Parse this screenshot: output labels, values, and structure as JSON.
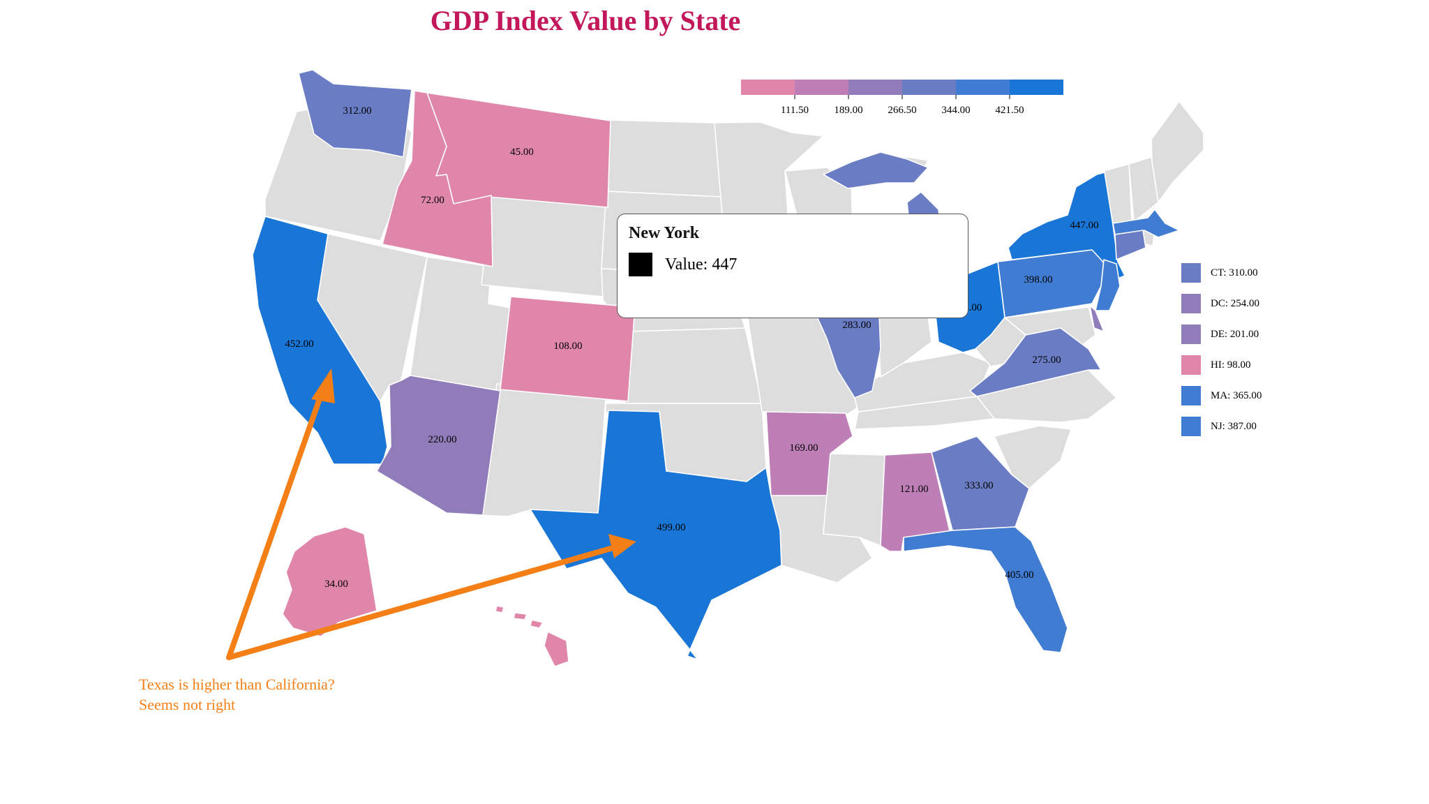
{
  "title": "GDP Index Value by State",
  "colors": {
    "no_data": "#dddddd",
    "scale": [
      "#e186ab",
      "#bd7fb6",
      "#917cba",
      "#6a7dc4",
      "#3f7cd2",
      "#1a76d6"
    ],
    "title": "#c2185b",
    "annotation": "#f57f17"
  },
  "color_legend": {
    "thresholds": [
      "111.50",
      "189.00",
      "266.50",
      "344.00",
      "421.50"
    ]
  },
  "side_legend": [
    {
      "label": "CT: 310.00",
      "value": 310
    },
    {
      "label": "DC: 254.00",
      "value": 254
    },
    {
      "label": "DE: 201.00",
      "value": 201
    },
    {
      "label": "HI: 98.00",
      "value": 98
    },
    {
      "label": "MA: 365.00",
      "value": 365
    },
    {
      "label": "NJ: 387.00",
      "value": 387
    }
  ],
  "tooltip": {
    "title": "New York",
    "value_text": "Value: 447"
  },
  "annotation": {
    "line1": "Texas is higher than California?",
    "line2": "Seems not right"
  },
  "chart_data": {
    "type": "choropleth",
    "title": "GDP Index Value by State",
    "legend_thresholds": [
      111.5,
      189,
      266.5,
      344,
      421.5
    ],
    "states": [
      {
        "id": "WA",
        "value": 312,
        "label": "312.00"
      },
      {
        "id": "MT",
        "value": 45,
        "label": "45.00"
      },
      {
        "id": "ID",
        "value": 72,
        "label": "72.00"
      },
      {
        "id": "CA",
        "value": 452,
        "label": "452.00"
      },
      {
        "id": "CO",
        "value": 108,
        "label": "108.00"
      },
      {
        "id": "AZ",
        "value": 220,
        "label": "220.00"
      },
      {
        "id": "TX",
        "value": 499,
        "label": "499.00"
      },
      {
        "id": "AR",
        "value": 169,
        "label": "169.00"
      },
      {
        "id": "AL",
        "value": 121,
        "label": "121.00"
      },
      {
        "id": "GA",
        "value": 333,
        "label": "333.00"
      },
      {
        "id": "FL",
        "value": 405,
        "label": "405.00"
      },
      {
        "id": "IL",
        "value": 283,
        "label": "283.00"
      },
      {
        "id": "VA",
        "value": 275,
        "label": "275.00"
      },
      {
        "id": "PA",
        "value": 398,
        "label": "398.00"
      },
      {
        "id": "NY",
        "value": 447,
        "label": "447.00"
      },
      {
        "id": "OH",
        "value": 0,
        "label": ".00"
      },
      {
        "id": "AK",
        "value": 34,
        "label": "34.00"
      },
      {
        "id": "MI",
        "value": 312
      },
      {
        "id": "NJ",
        "value": 387
      },
      {
        "id": "MA",
        "value": 365
      },
      {
        "id": "CT",
        "value": 310
      },
      {
        "id": "DE",
        "value": 201
      },
      {
        "id": "HI",
        "value": 98
      }
    ]
  }
}
